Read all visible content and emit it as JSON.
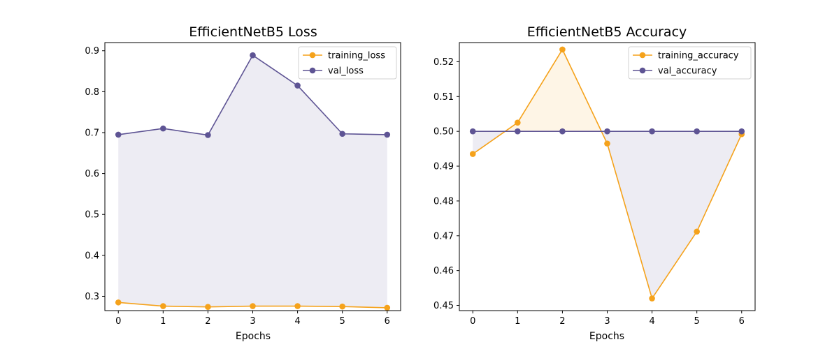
{
  "chart_data": [
    {
      "type": "line",
      "title": "EfficientNetB5 Loss",
      "xlabel": "Epochs",
      "ylabel": "",
      "x": [
        0,
        1,
        2,
        3,
        4,
        5,
        6
      ],
      "xlim": [
        -0.3,
        6.3
      ],
      "ylim": [
        0.265,
        0.92
      ],
      "xticks": [
        0,
        1,
        2,
        3,
        4,
        5,
        6
      ],
      "yticks": [
        0.3,
        0.4,
        0.5,
        0.6,
        0.7,
        0.8,
        0.9
      ],
      "ytick_labels": [
        "0.3",
        "0.4",
        "0.5",
        "0.6",
        "0.7",
        "0.8",
        "0.9"
      ],
      "grid": false,
      "legend": "top-right",
      "fill_between": true,
      "series": [
        {
          "name": "training_loss",
          "color": "#F5A21B",
          "values": [
            0.285,
            0.276,
            0.274,
            0.276,
            0.276,
            0.275,
            0.272
          ]
        },
        {
          "name": "val_loss",
          "color": "#5E5494",
          "values": [
            0.695,
            0.71,
            0.694,
            0.889,
            0.815,
            0.697,
            0.695
          ]
        }
      ]
    },
    {
      "type": "line",
      "title": "EfficientNetB5 Accuracy",
      "xlabel": "Epochs",
      "ylabel": "",
      "x": [
        0,
        1,
        2,
        3,
        4,
        5,
        6
      ],
      "xlim": [
        -0.3,
        6.3
      ],
      "ylim": [
        0.4485,
        0.5255
      ],
      "xticks": [
        0,
        1,
        2,
        3,
        4,
        5,
        6
      ],
      "yticks": [
        0.45,
        0.46,
        0.47,
        0.48,
        0.49,
        0.5,
        0.51,
        0.52
      ],
      "ytick_labels": [
        "0.45",
        "0.46",
        "0.47",
        "0.48",
        "0.49",
        "0.50",
        "0.51",
        "0.52"
      ],
      "grid": false,
      "legend": "top-right",
      "fill_between": true,
      "series": [
        {
          "name": "training_accuracy",
          "color": "#F5A21B",
          "values": [
            0.4935,
            0.5025,
            0.5235,
            0.4965,
            0.452,
            0.4712,
            0.4992
          ]
        },
        {
          "name": "val_accuracy",
          "color": "#5E5494",
          "values": [
            0.5,
            0.5,
            0.5,
            0.5,
            0.5,
            0.5,
            0.5
          ]
        }
      ]
    }
  ]
}
